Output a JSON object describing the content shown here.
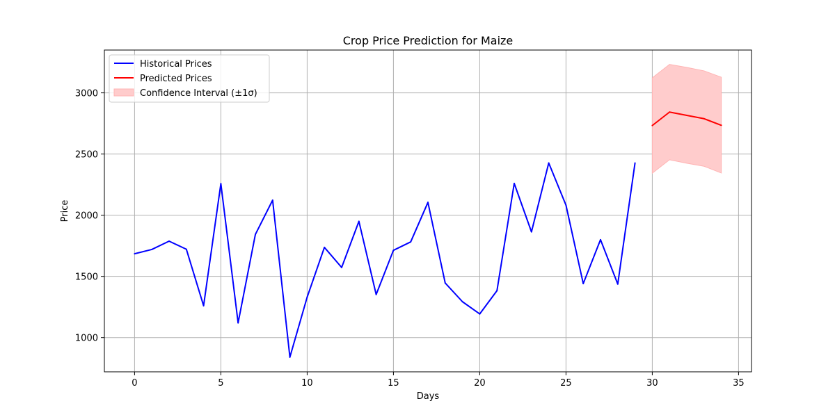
{
  "chart_data": {
    "type": "line",
    "title": "Crop Price Prediction for Maize",
    "xlabel": "Days",
    "ylabel": "Price",
    "xlim": [
      -1.75,
      35.75
    ],
    "ylim": [
      720,
      3350
    ],
    "xticks": [
      0,
      5,
      10,
      15,
      20,
      25,
      30,
      35
    ],
    "yticks": [
      1000,
      1500,
      2000,
      2500,
      3000
    ],
    "grid": true,
    "legend_position": "top-left",
    "series": [
      {
        "name": "Historical Prices",
        "color": "#0000ff",
        "x": [
          0,
          1,
          2,
          3,
          4,
          5,
          6,
          7,
          8,
          9,
          10,
          11,
          12,
          13,
          14,
          15,
          16,
          17,
          18,
          19,
          20,
          21,
          22,
          23,
          24,
          25,
          26,
          27,
          28,
          29
        ],
        "values": [
          1685,
          1720,
          1788,
          1722,
          1260,
          2258,
          1120,
          1843,
          2123,
          840,
          1330,
          1737,
          1573,
          1950,
          1352,
          1713,
          1782,
          2105,
          1446,
          1293,
          1193,
          1383,
          2260,
          1864,
          2427,
          2082,
          1441,
          1800,
          1437,
          2427
        ]
      },
      {
        "name": "Predicted Prices",
        "color": "#ff0000",
        "x": [
          30,
          31,
          32,
          33,
          34
        ],
        "values": [
          2733,
          2843,
          2816,
          2789,
          2735
        ]
      }
    ],
    "band": {
      "name": "Confidence Interval (±1σ)",
      "color": "#ffcccc",
      "x": [
        30,
        31,
        32,
        33,
        34
      ],
      "lower": [
        2343,
        2453,
        2425,
        2400,
        2345
      ],
      "upper": [
        3123,
        3233,
        3208,
        3180,
        3128
      ]
    }
  }
}
